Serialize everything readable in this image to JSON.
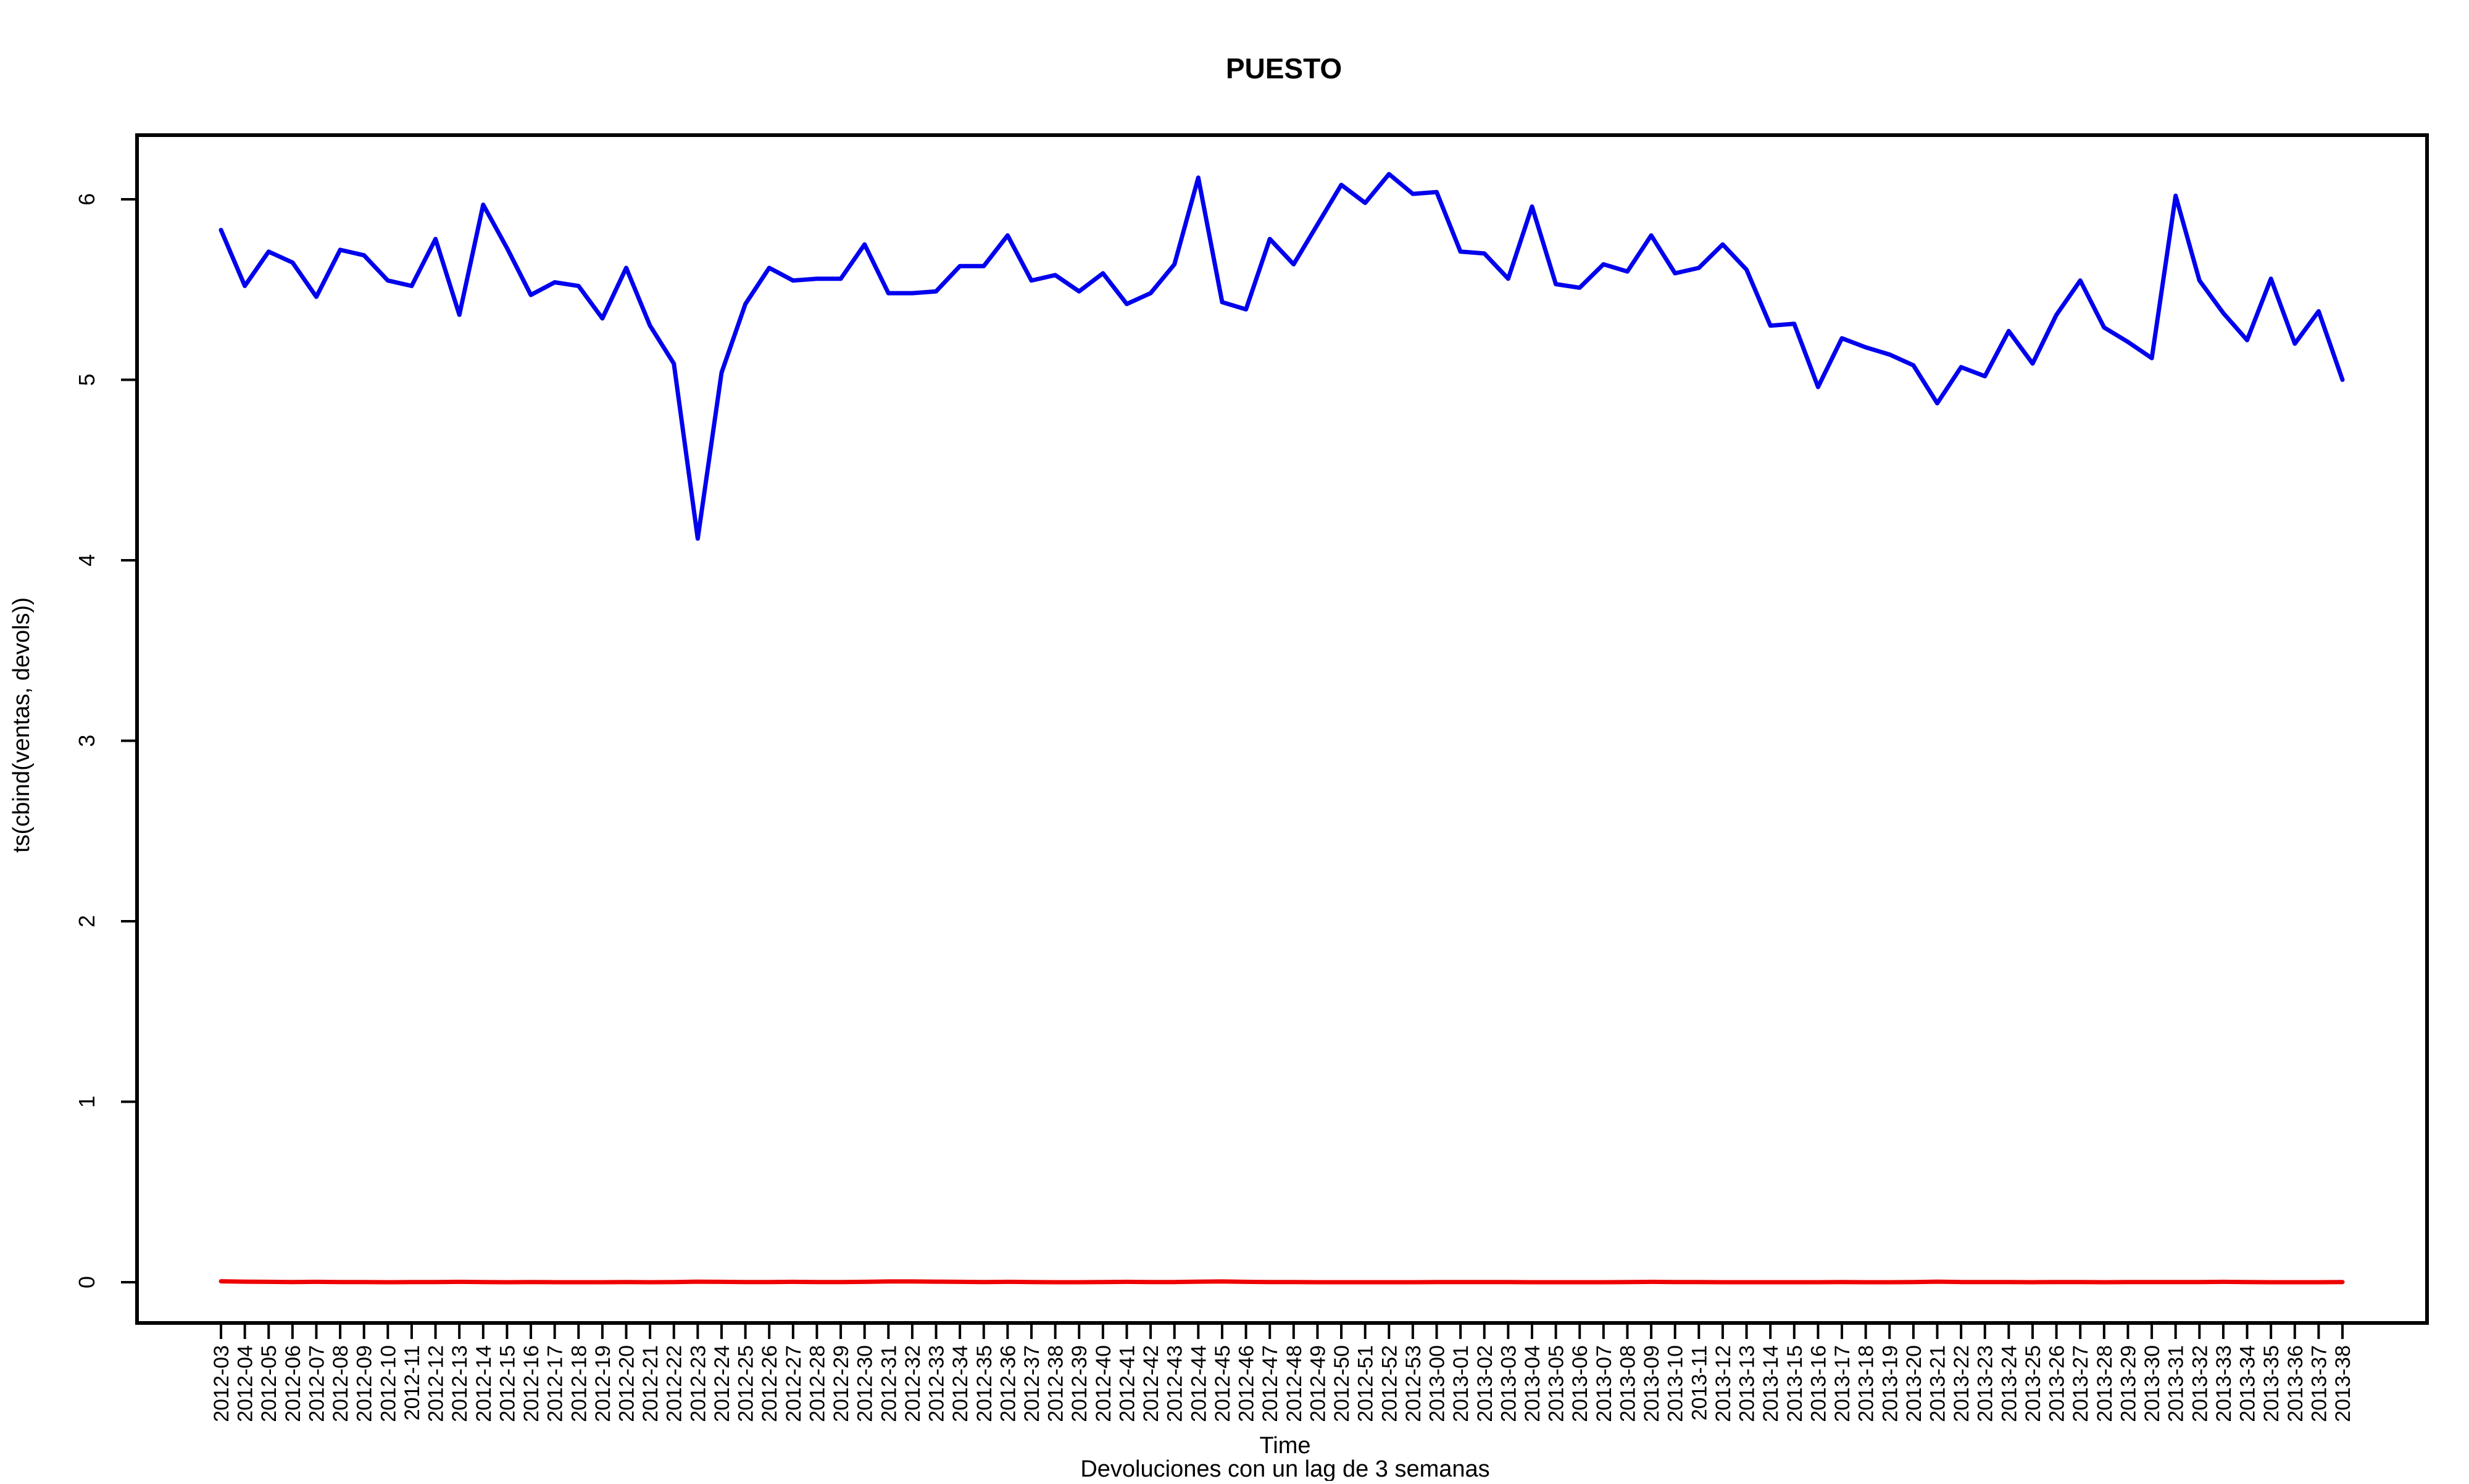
{
  "chart_data": {
    "type": "line",
    "title": "PUESTO",
    "xlabel": "Time",
    "ylabel": "ts(cbind(ventas, devols))",
    "note": "Devoluciones con un lag de 3 semanas",
    "ylim": [
      -0.25,
      6.4
    ],
    "yticks": [
      0,
      1,
      2,
      3,
      4,
      5,
      6
    ],
    "grid": false,
    "legend": "none",
    "categories": [
      "2012-03",
      "2012-04",
      "2012-05",
      "2012-06",
      "2012-07",
      "2012-08",
      "2012-09",
      "2012-10",
      "2012-11",
      "2012-12",
      "2012-13",
      "2012-14",
      "2012-15",
      "2012-16",
      "2012-17",
      "2012-18",
      "2012-19",
      "2012-20",
      "2012-21",
      "2012-22",
      "2012-23",
      "2012-24",
      "2012-25",
      "2012-26",
      "2012-27",
      "2012-28",
      "2012-29",
      "2012-30",
      "2012-31",
      "2012-32",
      "2012-33",
      "2012-34",
      "2012-35",
      "2012-36",
      "2012-37",
      "2012-38",
      "2012-39",
      "2012-40",
      "2012-41",
      "2012-42",
      "2012-43",
      "2012-44",
      "2012-45",
      "2012-46",
      "2012-47",
      "2012-48",
      "2012-49",
      "2012-50",
      "2012-51",
      "2012-52",
      "2012-53",
      "2013-00",
      "2013-01",
      "2013-02",
      "2013-03",
      "2013-04",
      "2013-05",
      "2013-06",
      "2013-07",
      "2013-08",
      "2013-09",
      "2013-10",
      "2013-11",
      "2013-12",
      "2013-13",
      "2013-14",
      "2013-15",
      "2013-16",
      "2013-17",
      "2013-18",
      "2013-19",
      "2013-20",
      "2013-21",
      "2013-22",
      "2013-23",
      "2013-24",
      "2013-25",
      "2013-26",
      "2013-27",
      "2013-28",
      "2013-29",
      "2013-30",
      "2013-31",
      "2013-32",
      "2013-33",
      "2013-34",
      "2013-35",
      "2013-36",
      "2013-37",
      "2013-38"
    ],
    "series": [
      {
        "color": "#0000ee",
        "values": [
          5.83,
          5.52,
          5.71,
          5.65,
          5.46,
          5.72,
          5.69,
          5.55,
          5.52,
          5.78,
          5.36,
          5.97,
          5.73,
          5.47,
          5.54,
          5.52,
          5.34,
          5.62,
          5.3,
          5.09,
          4.12,
          5.04,
          5.42,
          5.62,
          5.55,
          5.56,
          5.56,
          5.75,
          5.48,
          5.48,
          5.49,
          5.63,
          5.63,
          5.8,
          5.55,
          5.58,
          5.49,
          5.59,
          5.42,
          5.48,
          5.64,
          6.12,
          5.43,
          5.39,
          5.78,
          5.64,
          5.86,
          6.08,
          5.98,
          6.14,
          6.03,
          6.04,
          5.71,
          5.7,
          5.56,
          5.96,
          5.53,
          5.51,
          5.64,
          5.6,
          5.8,
          5.59,
          5.62,
          5.75,
          5.61,
          5.3,
          5.31,
          4.96,
          5.23,
          5.18,
          5.14,
          5.08,
          4.87,
          5.07,
          5.02,
          5.27,
          5.09,
          5.36,
          5.55,
          5.29,
          5.21,
          5.12,
          6.02,
          5.55,
          5.37,
          5.22,
          5.56,
          5.2,
          5.38,
          5.0
        ]
      },
      {
        "color": "#ee0000",
        "values": [
          0.005,
          0.003,
          0.002,
          0.001,
          0.002,
          0.001,
          0.001,
          0.0,
          0.001,
          0.001,
          0.002,
          0.001,
          0.0,
          0.001,
          0.0,
          0.0,
          0.0,
          0.001,
          0.0,
          0.001,
          0.003,
          0.002,
          0.001,
          0.001,
          0.002,
          0.001,
          0.001,
          0.002,
          0.004,
          0.004,
          0.003,
          0.002,
          0.001,
          0.002,
          0.001,
          0.0,
          0.0,
          0.001,
          0.002,
          0.001,
          0.001,
          0.003,
          0.004,
          0.002,
          0.001,
          0.001,
          0.0,
          0.0,
          0.0,
          0.0,
          0.0,
          0.001,
          0.001,
          0.001,
          0.001,
          0.0,
          0.0,
          0.0,
          0.0,
          0.001,
          0.002,
          0.001,
          0.001,
          0.0,
          0.0,
          0.0,
          0.0,
          0.0,
          0.001,
          0.0,
          0.0,
          0.001,
          0.003,
          0.001,
          0.001,
          0.001,
          0.0,
          0.001,
          0.001,
          0.0,
          0.001,
          0.001,
          0.001,
          0.001,
          0.002,
          0.001,
          0.0,
          0.0,
          0.0,
          0.001
        ]
      }
    ]
  }
}
